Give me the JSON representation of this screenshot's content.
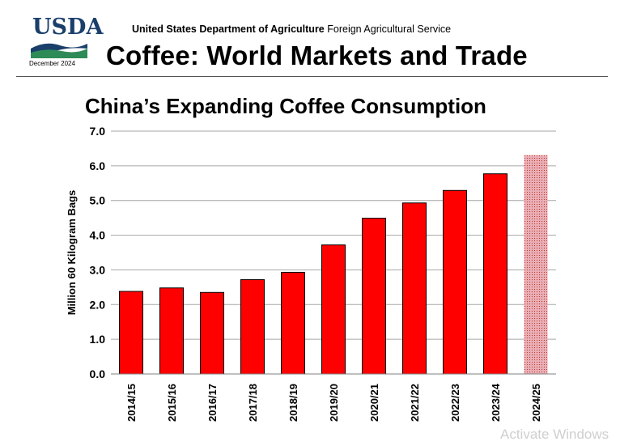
{
  "header": {
    "logo_text": "USDA",
    "date": "December 2024",
    "department": "United States Department of Agriculture",
    "service": "Foreign Agricultural Service",
    "report_title": "Coffee: World Markets and Trade"
  },
  "colors": {
    "bar": "#ff0000",
    "bar_outline": "#000000",
    "forecast_bar": "#e9aeb6",
    "logo_blue": "#1a3f6b",
    "logo_green": "#2e8b57",
    "gridline": "#a6a6a6"
  },
  "watermark": "Activate Windows",
  "chart_data": {
    "type": "bar",
    "title": "China’s Expanding Coffee Consumption",
    "ylabel": "Million 60 Kilogram Bags",
    "xlabel": "",
    "categories": [
      "2014/15",
      "2015/16",
      "2016/17",
      "2017/18",
      "2018/19",
      "2019/20",
      "2020/21",
      "2021/22",
      "2022/23",
      "2023/24",
      "2024/25"
    ],
    "values": [
      2.38,
      2.48,
      2.35,
      2.72,
      2.93,
      3.72,
      4.49,
      4.93,
      5.29,
      5.77,
      6.31
    ],
    "forecast_categories": [
      "2024/25"
    ],
    "ylim": [
      0,
      7
    ],
    "yticks": [
      "0.0",
      "1.0",
      "2.0",
      "3.0",
      "4.0",
      "5.0",
      "6.0",
      "7.0"
    ],
    "grid": true,
    "legend": "none"
  }
}
